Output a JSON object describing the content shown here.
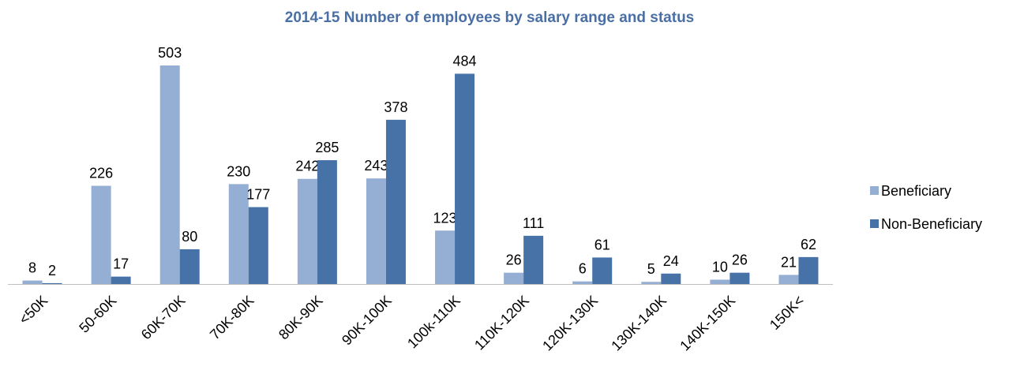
{
  "chart_data": {
    "type": "bar",
    "title": "2014-15 Number of employees by salary range and status",
    "categories": [
      "<50K",
      "50-60K",
      "60K-70K",
      "70K-80K",
      "80K-90K",
      "90K-100K",
      "100k-110K",
      "110K-120K",
      "120K-130K",
      "130K-140K",
      "140K-150K",
      "150K<"
    ],
    "series": [
      {
        "name": "Beneficiary",
        "color": "#95aed3",
        "values": [
          8,
          226,
          503,
          230,
          242,
          243,
          123,
          26,
          6,
          5,
          10,
          21
        ]
      },
      {
        "name": "Non-Beneficiary",
        "color": "#4672a8",
        "values": [
          2,
          17,
          80,
          177,
          285,
          378,
          484,
          111,
          61,
          24,
          26,
          62
        ]
      }
    ],
    "legend": "right"
  }
}
